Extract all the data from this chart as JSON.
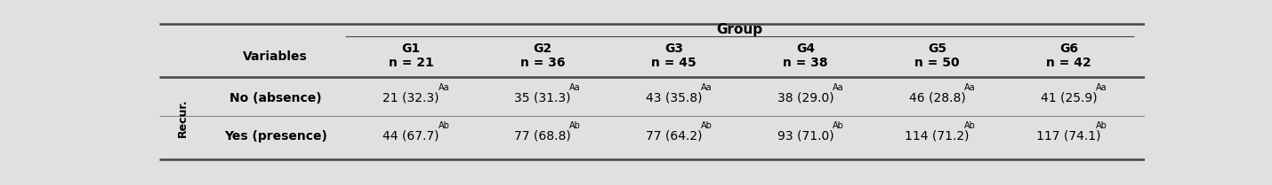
{
  "title": "Group",
  "col_headers": [
    "G1",
    "G2",
    "G3",
    "G4",
    "G5",
    "G6"
  ],
  "col_subheaders": [
    "n = 21",
    "n = 36",
    "n = 45",
    "n = 38",
    "n = 50",
    "n = 42"
  ],
  "row_label_top": "Variables",
  "row_category_label": "Recur.",
  "rows": [
    {
      "label": "No (absence)",
      "values": [
        "21 (32.3)",
        "35 (31.3)",
        "43 (35.8)",
        "38 (29.0)",
        "46 (28.8)",
        "41 (25.9)"
      ],
      "superscripts": [
        "Aa",
        "Aa",
        "Aa",
        "Aa",
        "Aa",
        "Aa"
      ]
    },
    {
      "label": "Yes (presence)",
      "values": [
        "44 (67.7)",
        "77 (68.8)",
        "77 (64.2)",
        "93 (71.0)",
        "114 (71.2)",
        "117 (74.1)"
      ],
      "superscripts": [
        "Ab",
        "Ab",
        "Ab",
        "Ab",
        "Ab",
        "Ab"
      ]
    }
  ],
  "bg_color": "#e0e0e0",
  "text_color": "#000000",
  "line_color_dark": "#444444",
  "line_color_thin": "#888888",
  "figwidth": 14.3,
  "figheight": 2.09,
  "dpi": 100
}
